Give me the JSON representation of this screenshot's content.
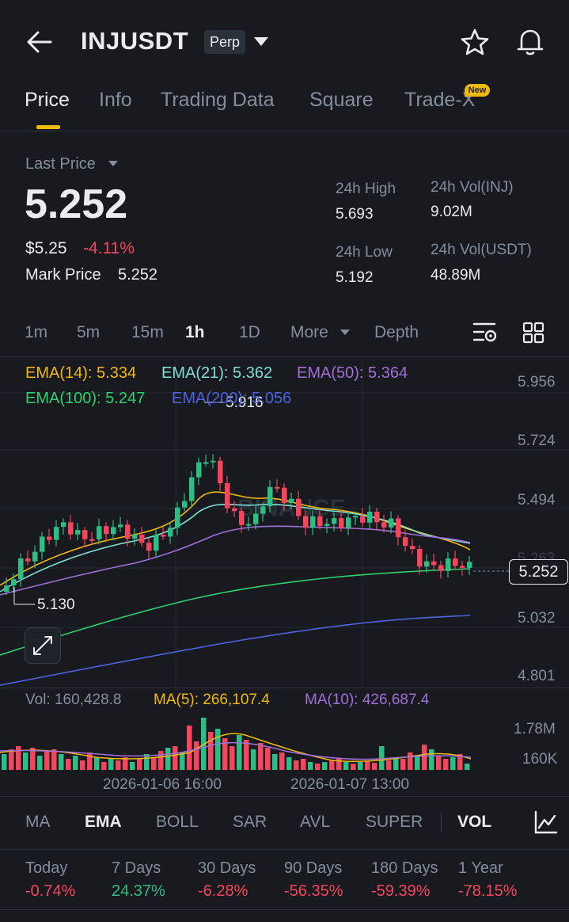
{
  "header": {
    "symbol": "INJUSDT",
    "contract_type": "Perp",
    "icons": [
      "back-arrow-icon",
      "dropdown-caret-icon",
      "star-icon",
      "bell-icon"
    ]
  },
  "tabs": [
    {
      "label": "Price",
      "active": true
    },
    {
      "label": "Info",
      "active": false
    },
    {
      "label": "Trading Data",
      "active": false
    },
    {
      "label": "Square",
      "active": false
    },
    {
      "label": "Trade-X",
      "active": false,
      "badge": "New"
    }
  ],
  "price": {
    "last_price_label": "Last Price",
    "last_price": "5.252",
    "usd_value": "$5.25",
    "change_pct": "-4.11%",
    "mark_price_label": "Mark Price",
    "mark_price": "5.252"
  },
  "stats": {
    "high_label": "24h High",
    "high": "5.693",
    "low_label": "24h Low",
    "low": "5.192",
    "vol_inj_label": "24h Vol(INJ)",
    "vol_inj": "9.02M",
    "vol_usdt_label": "24h Vol(USDT)",
    "vol_usdt": "48.89M"
  },
  "intervals": [
    {
      "label": "1m",
      "active": false
    },
    {
      "label": "5m",
      "active": false
    },
    {
      "label": "15m",
      "active": false
    },
    {
      "label": "1h",
      "active": true
    },
    {
      "label": "1D",
      "active": false
    },
    {
      "label": "More",
      "active": false
    },
    {
      "label": "Depth",
      "active": false
    }
  ],
  "ema": {
    "ema14": "EMA(14): 5.334",
    "ema21": "EMA(21): 5.362",
    "ema50": "EMA(50): 5.364",
    "ema100": "EMA(100): 5.247",
    "ema200": "EMA(200): 5.056"
  },
  "chart": {
    "y_axis": [
      "5.956",
      "5.724",
      "5.494",
      "5.263",
      "5.032",
      "4.801"
    ],
    "current_price_tag": "5.252",
    "high_marker": "5.916",
    "low_marker": "5.130",
    "watermark": "BINANCE",
    "x_axis": [
      "2026-01-06 16:00",
      "2026-01-07 13:00"
    ]
  },
  "volume": {
    "vol": "Vol: 160,428.8",
    "ma5": "MA(5): 266,107.4",
    "ma10": "MA(10): 426,687.4",
    "y_axis": [
      "1.78M",
      "160K"
    ]
  },
  "indicators": [
    {
      "label": "MA",
      "active": false
    },
    {
      "label": "EMA",
      "active": true
    },
    {
      "label": "BOLL",
      "active": false
    },
    {
      "label": "SAR",
      "active": false
    },
    {
      "label": "AVL",
      "active": false
    },
    {
      "label": "SUPER",
      "active": false
    },
    {
      "label": "VOL",
      "active": true
    }
  ],
  "performance": [
    {
      "label": "Today",
      "value": "-0.74%",
      "color": "#f6465d"
    },
    {
      "label": "7 Days",
      "value": "24.37%",
      "color": "#2ebd85"
    },
    {
      "label": "30 Days",
      "value": "-6.28%",
      "color": "#f6465d"
    },
    {
      "label": "90 Days",
      "value": "-56.35%",
      "color": "#f6465d"
    },
    {
      "label": "180 Days",
      "value": "-59.39%",
      "color": "#f6465d"
    },
    {
      "label": "1 Year",
      "value": "-78.15%",
      "color": "#f6465d"
    }
  ],
  "colors": {
    "accent": "#f0b90b",
    "up": "#2ebd85",
    "down": "#f6465d",
    "ema14": "#f0b90b",
    "ema21": "#7fe0d3",
    "ema50": "#a06fd8",
    "ema100": "#2ed16b",
    "ema200": "#4d63e0"
  }
}
